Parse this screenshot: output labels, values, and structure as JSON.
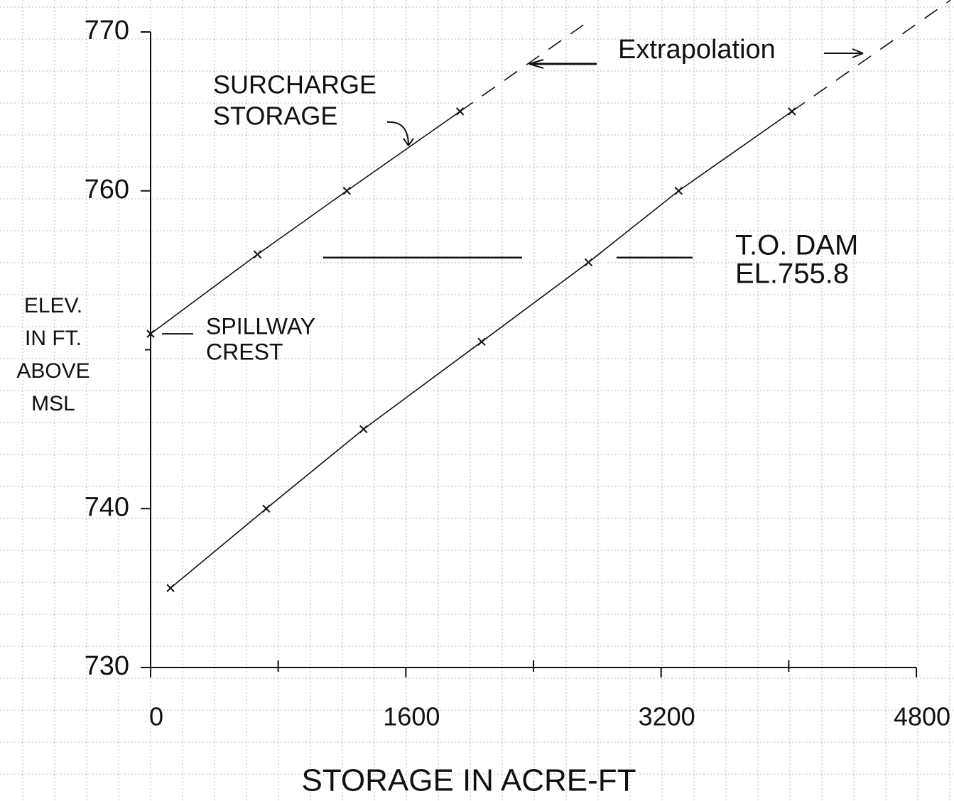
{
  "chart_data": {
    "type": "line",
    "x_label": "STORAGE IN ACRE-FT",
    "y_label": [
      "ELEV.",
      "IN FT.",
      "ABOVE",
      "MSL"
    ],
    "xlim": [
      0,
      4800
    ],
    "ylim": [
      730,
      770
    ],
    "xticks": [
      0,
      1600,
      3200,
      4800
    ],
    "xminor_ticks": [
      800,
      2400,
      4000
    ],
    "yticks": [
      730,
      740,
      760,
      770
    ],
    "yminor_ticks": [
      750
    ],
    "color": "#111111",
    "series": [
      {
        "x": [
          0,
          670,
          1230,
          1940
        ],
        "values": [
          751,
          756,
          760,
          765
        ],
        "extrapolate_to": 770.5
      },
      {
        "x": [
          125,
          725,
          1335,
          2075,
          2745,
          3310,
          4020
        ],
        "values": [
          735,
          740,
          745,
          750.5,
          755.5,
          760,
          765
        ],
        "extrapolate_to": 772
      }
    ],
    "annotations": [
      {
        "text": [
          "SURCHARGE",
          "STORAGE"
        ]
      },
      {
        "text": [
          "SPILLWAY",
          "CREST"
        ],
        "y": 751
      },
      {
        "text": [
          "T.O. DAM",
          "EL.755.8"
        ],
        "y": 755.8
      },
      {
        "text": [
          "Extrapolation"
        ]
      }
    ]
  }
}
